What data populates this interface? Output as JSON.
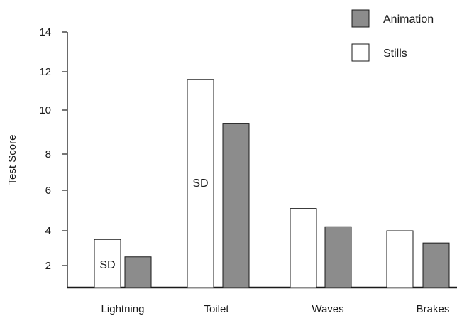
{
  "chart_data": {
    "type": "bar",
    "title": "",
    "xlabel": "",
    "ylabel": "Test Score",
    "categories": [
      "Lightning",
      "Toilet",
      "Waves",
      "Brakes"
    ],
    "series": [
      {
        "name": "Stills",
        "values": [
          3.5,
          11.6,
          5.1,
          4.0
        ],
        "color": "#ffffff"
      },
      {
        "name": "Animation",
        "values": [
          2.5,
          9.4,
          4.2,
          3.3
        ],
        "color": "#8c8c8c"
      }
    ],
    "yticks": [
      2,
      4,
      6,
      8,
      10,
      12,
      14
    ],
    "yaxis_scale": "nonlinear",
    "legend": {
      "position": "top-right",
      "order": [
        "Animation",
        "Stills"
      ]
    },
    "annotations": [
      {
        "text": "SD",
        "category": "Lightning",
        "series": "Stills"
      },
      {
        "text": "SD",
        "category": "Toilet",
        "series": "Stills"
      }
    ],
    "grid": false
  }
}
